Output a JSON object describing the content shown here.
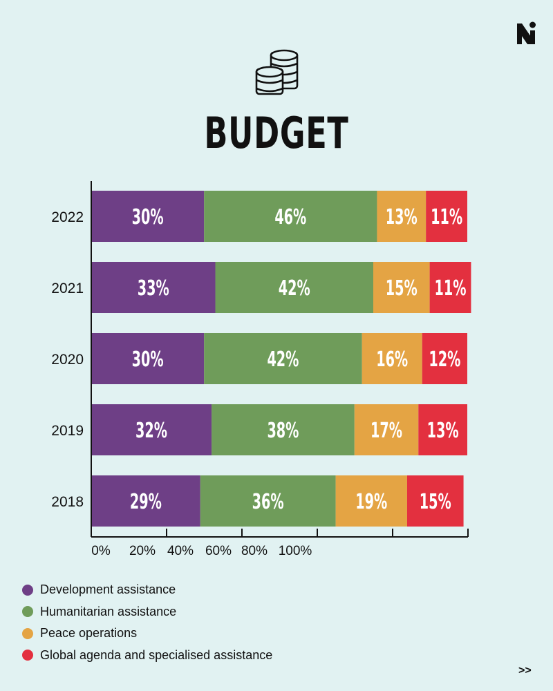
{
  "header": {
    "title": "BUDGET",
    "logo_icon": "n-logo-icon",
    "title_icon": "coins-stack-icon"
  },
  "chart_data": {
    "type": "bar",
    "orientation": "horizontal",
    "stacked": true,
    "categories": [
      "2022",
      "2021",
      "2020",
      "2019",
      "2018"
    ],
    "series": [
      {
        "name": "Development assistance",
        "color": "#6e3f86",
        "values": [
          30,
          33,
          30,
          32,
          29
        ]
      },
      {
        "name": "Humanitarian assistance",
        "color": "#6f9c5a",
        "values": [
          46,
          42,
          42,
          38,
          36
        ]
      },
      {
        "name": "Peace operations",
        "color": "#e4a444",
        "values": [
          13,
          15,
          16,
          17,
          19
        ]
      },
      {
        "name": "Global agenda and specialised assistance",
        "color": "#e3303f",
        "values": [
          11,
          11,
          12,
          13,
          15
        ]
      }
    ],
    "data_labels": [
      [
        "30%",
        "33%",
        "30%",
        "32%",
        "29%"
      ],
      [
        "46%",
        "42%",
        "42%",
        "38%",
        "36%"
      ],
      [
        "13%",
        "15%",
        "16%",
        "17%",
        "19%"
      ],
      [
        "11%",
        "11%",
        "12%",
        "13%",
        "15%"
      ]
    ],
    "x_tick_labels": [
      "0%",
      "20%",
      "40%",
      "60%",
      "80%",
      "100%"
    ],
    "x_range": [
      0,
      100
    ],
    "legend_position": "bottom-left",
    "grid": false
  },
  "footer": {
    "next_label": ">>"
  }
}
